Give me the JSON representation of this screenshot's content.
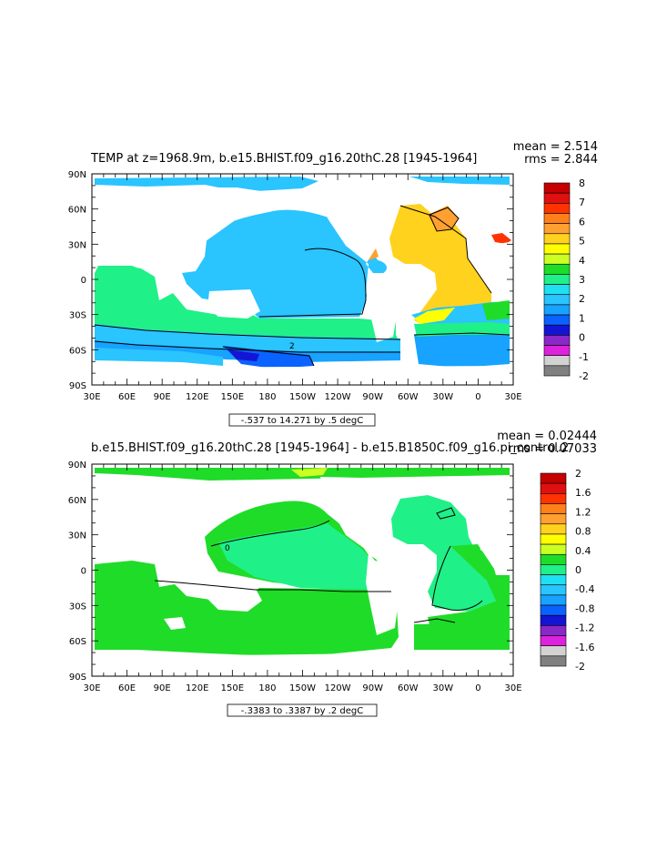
{
  "chart_data": [
    {
      "type": "heatmap",
      "title": "TEMP at z=1968.9m, b.e15.BHIST.f09_g16.20thC.28 [1945-1964]",
      "stats": {
        "mean": "mean = 2.514",
        "rms": "rms = 2.844"
      },
      "x_ticks": [
        "30E",
        "60E",
        "90E",
        "120E",
        "150E",
        "180",
        "150W",
        "120W",
        "90W",
        "60W",
        "30W",
        "0",
        "30E"
      ],
      "y_ticks": [
        "90N",
        "60N",
        "30N",
        "0",
        "30S",
        "60S",
        "90S"
      ],
      "xlim": [
        30,
        390
      ],
      "ylim": [
        -90,
        90
      ],
      "range_label": "-.537 to 14.271 by .5 degC",
      "colorbar": {
        "labels": [
          "8",
          "7",
          "6",
          "5",
          "4",
          "3",
          "2",
          "1",
          "0",
          "-1",
          "-2"
        ],
        "colors": [
          "#c40000",
          "#e01010",
          "#ff3300",
          "#ff7f1a",
          "#ffa030",
          "#ffd21e",
          "#ffff00",
          "#ccff22",
          "#1fdc28",
          "#20f088",
          "#1ee0f0",
          "#2ac4ff",
          "#17a3ff",
          "#0a62ff",
          "#1414d4",
          "#8a28c8",
          "#dd22dd",
          "#d2d2d2",
          "#808080"
        ]
      },
      "contour_labels": [
        "2"
      ]
    },
    {
      "type": "heatmap",
      "title": "b.e15.BHIST.f09_g16.20thC.28 [1945-1964] - b.e15.B1850C.f09_g16.pi_control.2",
      "stats": {
        "mean": "mean = 0.02444",
        "rms": "rms = 0.07033"
      },
      "x_ticks": [
        "30E",
        "60E",
        "90E",
        "120E",
        "150E",
        "180",
        "150W",
        "120W",
        "90W",
        "60W",
        "30W",
        "0",
        "30E"
      ],
      "y_ticks": [
        "90N",
        "60N",
        "30N",
        "0",
        "30S",
        "60S",
        "90S"
      ],
      "xlim": [
        30,
        390
      ],
      "ylim": [
        -90,
        90
      ],
      "range_label": "-.3383 to .3387 by .2 degC",
      "colorbar": {
        "labels": [
          "2",
          "1.6",
          "1.2",
          "0.8",
          "0.4",
          "0",
          "-0.4",
          "-0.8",
          "-1.2",
          "-1.6",
          "-2"
        ],
        "colors": [
          "#c40000",
          "#e01010",
          "#ff3300",
          "#ff7f1a",
          "#ffa030",
          "#ffd21e",
          "#ffff00",
          "#ccff22",
          "#1fdc28",
          "#20f088",
          "#1ee0f0",
          "#2ac4ff",
          "#17a3ff",
          "#0a62ff",
          "#1414d4",
          "#8a28c8",
          "#dd22dd",
          "#d2d2d2",
          "#808080"
        ]
      },
      "contour_labels": [
        "0"
      ]
    }
  ]
}
